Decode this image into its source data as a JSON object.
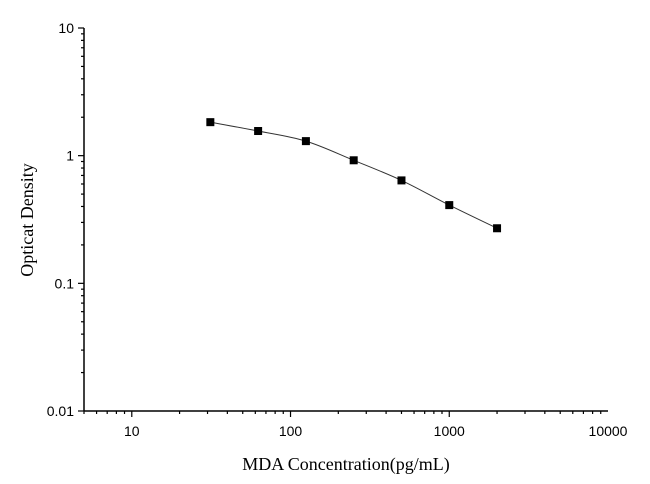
{
  "chart_data": {
    "type": "scatter",
    "title": "",
    "xlabel": "MDA Concentration(pg/mL)",
    "ylabel": "Opticat Density",
    "x_scale": "log",
    "y_scale": "log",
    "xlim": [
      5,
      10000
    ],
    "ylim": [
      0.01,
      10
    ],
    "x_ticks": [
      10,
      100,
      1000,
      10000
    ],
    "x_tick_labels": [
      "10",
      "100",
      "1000",
      "10000"
    ],
    "y_ticks": [
      0.01,
      0.1,
      1,
      10
    ],
    "y_tick_labels": [
      "0.01",
      "0.1",
      "1",
      "10"
    ],
    "grid": false,
    "legend": "none",
    "series": [
      {
        "x": [
          31.25,
          62.5,
          125,
          250,
          500,
          1000,
          2000
        ],
        "y": [
          1.83,
          1.56,
          1.3,
          0.92,
          0.64,
          0.41,
          0.27
        ],
        "marker": "square",
        "fit_line": true,
        "color": "#000000"
      }
    ]
  }
}
